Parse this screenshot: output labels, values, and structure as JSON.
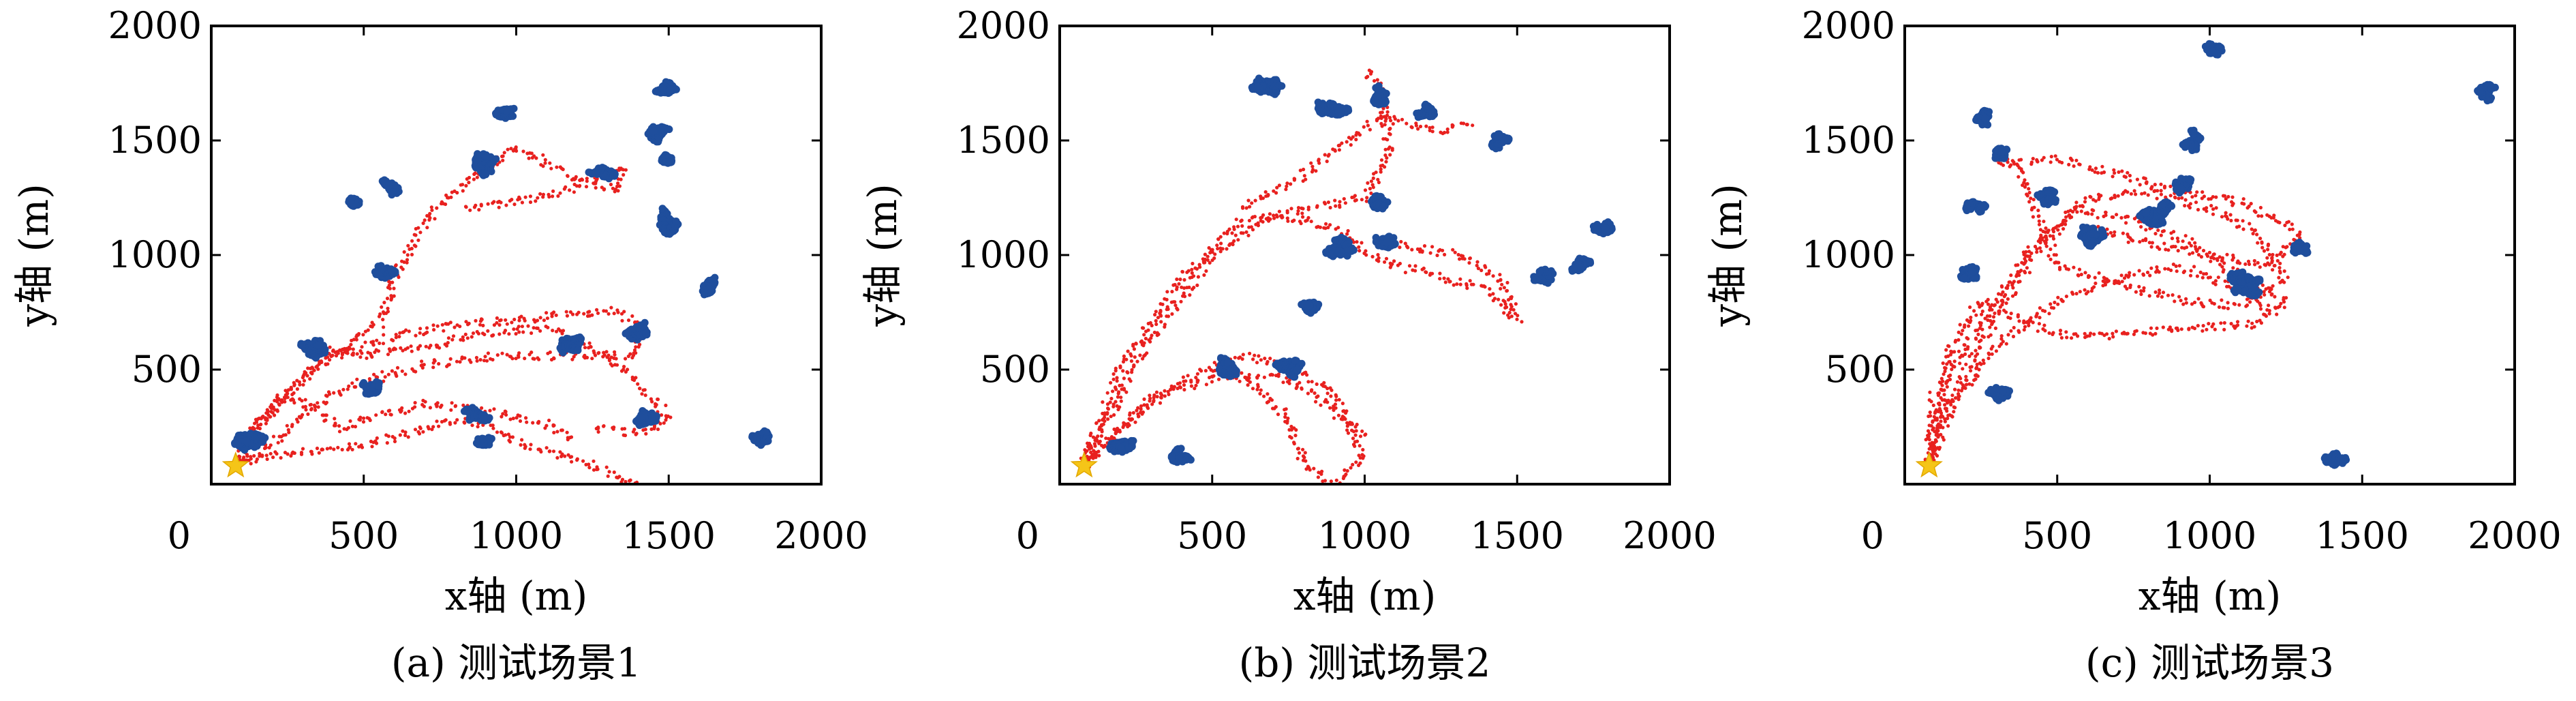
{
  "chart_data": [
    {
      "type": "scatter",
      "caption": "(a) 测试场景1",
      "xlabel": "x轴 (m)",
      "ylabel": "y轴 (m)",
      "xlim": [
        0,
        2000
      ],
      "ylim": [
        0,
        2000
      ],
      "xticks": [
        "0",
        "500",
        "1000",
        "1500",
        "2000"
      ],
      "yticks": [
        "500",
        "1000",
        "1500",
        "2000"
      ],
      "grid": false,
      "start": [
        80,
        80
      ],
      "series": [
        {
          "role": "robot_trajectory",
          "color": "#e8211f",
          "paths": [
            [
              [
                80,
                80
              ],
              [
                130,
                220
              ],
              [
                260,
                420
              ],
              [
                400,
                560
              ],
              [
                600,
                650
              ],
              [
                850,
                700
              ],
              [
                1100,
                730
              ],
              [
                1300,
                760
              ],
              [
                1400,
                700
              ],
              [
                1380,
                560
              ],
              [
                1200,
                560
              ],
              [
                950,
                560
              ],
              [
                700,
                520
              ],
              [
                450,
                430
              ],
              [
                300,
                300
              ],
              [
                200,
                180
              ],
              [
                80,
                80
              ]
            ],
            [
              [
                80,
                80
              ],
              [
                180,
                320
              ],
              [
                350,
                520
              ],
              [
                550,
                700
              ],
              [
                600,
                900
              ],
              [
                700,
                1150
              ],
              [
                800,
                1280
              ],
              [
                900,
                1380
              ],
              [
                1000,
                1470
              ],
              [
                1100,
                1400
              ],
              [
                1200,
                1330
              ],
              [
                1320,
                1280
              ],
              [
                1350,
                1380
              ],
              [
                1200,
                1300
              ],
              [
                1000,
                1230
              ],
              [
                820,
                1200
              ]
            ],
            [
              [
                80,
                80
              ],
              [
                220,
                130
              ],
              [
                450,
                160
              ],
              [
                650,
                220
              ],
              [
                800,
                280
              ],
              [
                900,
                260
              ],
              [
                1000,
                180
              ],
              [
                1150,
                120
              ],
              [
                1300,
                60
              ],
              [
                1400,
                0
              ]
            ],
            [
              [
                300,
                600
              ],
              [
                500,
                560
              ],
              [
                700,
                600
              ],
              [
                900,
                660
              ],
              [
                1100,
                680
              ],
              [
                1250,
                600
              ],
              [
                1380,
                460
              ],
              [
                1450,
                380
              ],
              [
                1500,
                280
              ],
              [
                1400,
                220
              ],
              [
                1250,
                250
              ]
            ],
            [
              [
                150,
                260
              ],
              [
                250,
                380
              ],
              [
                350,
                320
              ],
              [
                420,
                240
              ],
              [
                550,
                300
              ],
              [
                700,
                350
              ],
              [
                850,
                330
              ],
              [
                980,
                300
              ],
              [
                1100,
                260
              ],
              [
                1200,
                200
              ]
            ]
          ]
        },
        {
          "role": "obstacles",
          "color": "#1f4e9c",
          "clusters": [
            [
              100,
              200,
              70
            ],
            [
              160,
              190,
              60
            ],
            [
              300,
              590,
              100
            ],
            [
              520,
              430,
              50
            ],
            [
              580,
              950,
              70
            ],
            [
              590,
              1300,
              50
            ],
            [
              480,
              1230,
              40
            ],
            [
              870,
              1410,
              90
            ],
            [
              980,
              1600,
              70
            ],
            [
              1280,
              1360,
              60
            ],
            [
              1200,
              630,
              100
            ],
            [
              1400,
              670,
              60
            ],
            [
              1480,
              1720,
              60
            ],
            [
              1470,
              1530,
              50
            ],
            [
              1490,
              1410,
              40
            ],
            [
              1500,
              1150,
              80
            ],
            [
              1640,
              860,
              60
            ],
            [
              1420,
              280,
              60
            ],
            [
              870,
              300,
              60
            ],
            [
              900,
              170,
              50
            ],
            [
              1780,
              200,
              70
            ]
          ]
        }
      ]
    },
    {
      "type": "scatter",
      "caption": "(b) 测试场景2",
      "xlabel": "x轴 (m)",
      "ylabel": "y轴 (m)",
      "xlim": [
        0,
        2000
      ],
      "ylim": [
        0,
        2000
      ],
      "xticks": [
        "0",
        "500",
        "1000",
        "1500",
        "2000"
      ],
      "yticks": [
        "500",
        "1000",
        "1500",
        "2000"
      ],
      "grid": false,
      "start": [
        80,
        80
      ],
      "series": [
        {
          "role": "robot_trajectory",
          "color": "#e8211f",
          "paths": [
            [
              [
                80,
                80
              ],
              [
                200,
                500
              ],
              [
                400,
                900
              ],
              [
                600,
                1150
              ],
              [
                800,
                1200
              ],
              [
                1000,
                1250
              ],
              [
                1080,
                1450
              ],
              [
                1060,
                1700
              ],
              [
                1000,
                1820
              ]
            ],
            [
              [
                80,
                80
              ],
              [
                280,
                600
              ],
              [
                500,
                1000
              ],
              [
                700,
                1180
              ],
              [
                900,
                1120
              ],
              [
                1050,
                980
              ],
              [
                1250,
                900
              ],
              [
                1400,
                850
              ],
              [
                1500,
                720
              ],
              [
                1450,
                900
              ],
              [
                1300,
                1000
              ],
              [
                1100,
                1050
              ]
            ],
            [
              [
                80,
                80
              ],
              [
                250,
                300
              ],
              [
                450,
                480
              ],
              [
                600,
                560
              ],
              [
                750,
                520
              ],
              [
                900,
                400
              ],
              [
                950,
                250
              ],
              [
                1000,
                120
              ],
              [
                900,
                0
              ],
              [
                800,
                80
              ],
              [
                750,
                300
              ],
              [
                650,
                420
              ],
              [
                550,
                500
              ]
            ],
            [
              [
                80,
                80
              ],
              [
                300,
                380
              ],
              [
                500,
                460
              ],
              [
                700,
                480
              ],
              [
                850,
                380
              ],
              [
                1000,
                200
              ]
            ],
            [
              [
                600,
                1200
              ],
              [
                800,
                1350
              ],
              [
                950,
                1500
              ],
              [
                1050,
                1600
              ],
              [
                1250,
                1540
              ],
              [
                1350,
                1580
              ]
            ]
          ]
        },
        {
          "role": "obstacles",
          "color": "#1f4e9c",
          "clusters": [
            [
              680,
              1740,
              70
            ],
            [
              920,
              1650,
              100
            ],
            [
              1050,
              1700,
              60
            ],
            [
              1200,
              1630,
              50
            ],
            [
              1440,
              1500,
              50
            ],
            [
              880,
              1000,
              120
            ],
            [
              820,
              760,
              50
            ],
            [
              1080,
              1070,
              60
            ],
            [
              1590,
              900,
              50
            ],
            [
              1710,
              950,
              50
            ],
            [
              1780,
              1130,
              50
            ],
            [
              560,
              510,
              80
            ],
            [
              760,
              480,
              90
            ],
            [
              200,
              180,
              60
            ],
            [
              400,
              130,
              60
            ],
            [
              1040,
              1230,
              50
            ]
          ]
        }
      ]
    },
    {
      "type": "scatter",
      "caption": "(c) 测试场景3",
      "xlabel": "x轴 (m)",
      "ylabel": "y轴 (m)",
      "xlim": [
        0,
        2000
      ],
      "ylim": [
        0,
        2000
      ],
      "xticks": [
        "0",
        "500",
        "1000",
        "1500",
        "2000"
      ],
      "yticks": [
        "500",
        "1000",
        "1500",
        "2000"
      ],
      "grid": false,
      "start": [
        80,
        80
      ],
      "series": [
        {
          "role": "robot_trajectory",
          "color": "#e8211f",
          "paths": [
            [
              [
                80,
                80
              ],
              [
                100,
                400
              ],
              [
                250,
                700
              ],
              [
                400,
                1000
              ],
              [
                550,
                1200
              ],
              [
                750,
                1150
              ],
              [
                950,
                1050
              ],
              [
                1100,
                900
              ],
              [
                1250,
                800
              ],
              [
                1150,
                700
              ],
              [
                950,
                680
              ],
              [
                750,
                660
              ],
              [
                550,
                640
              ],
              [
                400,
                700
              ],
              [
                250,
                800
              ],
              [
                150,
                600
              ],
              [
                80,
                80
              ]
            ],
            [
              [
                80,
                80
              ],
              [
                200,
                500
              ],
              [
                350,
                850
              ],
              [
                450,
                1050
              ],
              [
                600,
                1250
              ],
              [
                800,
                1280
              ],
              [
                1000,
                1200
              ],
              [
                1150,
                1100
              ],
              [
                1250,
                900
              ],
              [
                1100,
                780
              ],
              [
                900,
                800
              ],
              [
                700,
                880
              ],
              [
                500,
                950
              ],
              [
                400,
                1300
              ],
              [
                350,
                1420
              ]
            ],
            [
              [
                80,
                80
              ],
              [
                120,
                300
              ],
              [
                300,
                600
              ],
              [
                500,
                800
              ],
              [
                700,
                900
              ],
              [
                900,
                950
              ],
              [
                1100,
                850
              ],
              [
                1200,
                760
              ]
            ],
            [
              [
                300,
                1400
              ],
              [
                500,
                1420
              ],
              [
                700,
                1350
              ],
              [
                900,
                1280
              ],
              [
                1100,
                1230
              ],
              [
                1300,
                1100
              ],
              [
                1200,
                950
              ],
              [
                1000,
                1000
              ],
              [
                800,
                1050
              ],
              [
                600,
                1120
              ]
            ]
          ]
        },
        {
          "role": "obstacles",
          "color": "#1f4e9c",
          "clusters": [
            [
              220,
              950,
              80
            ],
            [
              230,
              1220,
              50
            ],
            [
              240,
              1600,
              60
            ],
            [
              320,
              1440,
              40
            ],
            [
              310,
              400,
              50
            ],
            [
              480,
              1260,
              60
            ],
            [
              600,
              1050,
              100
            ],
            [
              850,
              1150,
              110
            ],
            [
              950,
              1500,
              60
            ],
            [
              920,
              1300,
              50
            ],
            [
              1000,
              1880,
              60
            ],
            [
              1100,
              880,
              140
            ],
            [
              1300,
              1050,
              60
            ],
            [
              1420,
              120,
              60
            ],
            [
              1890,
              1720,
              70
            ]
          ]
        }
      ]
    }
  ]
}
